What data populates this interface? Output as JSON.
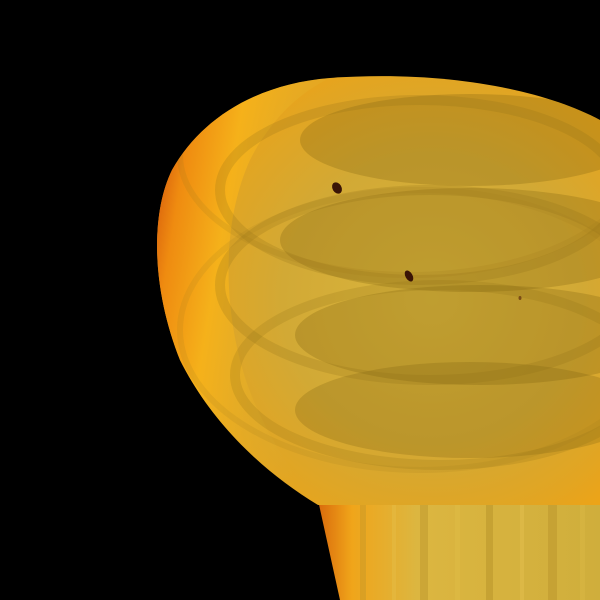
{
  "image": {
    "subject": "sun-disk-stacked-exposures",
    "palette": {
      "background": "#000000",
      "limb_dark": "#c83a08",
      "limb_mid": "#e8780c",
      "limb_bright": "#f7b81a",
      "disk_center": "#d7b23a",
      "disk_shadow": "#a88420",
      "band_overlay": "#8a6a12",
      "sunspot": "#3a1406"
    },
    "sunspots": 3
  }
}
